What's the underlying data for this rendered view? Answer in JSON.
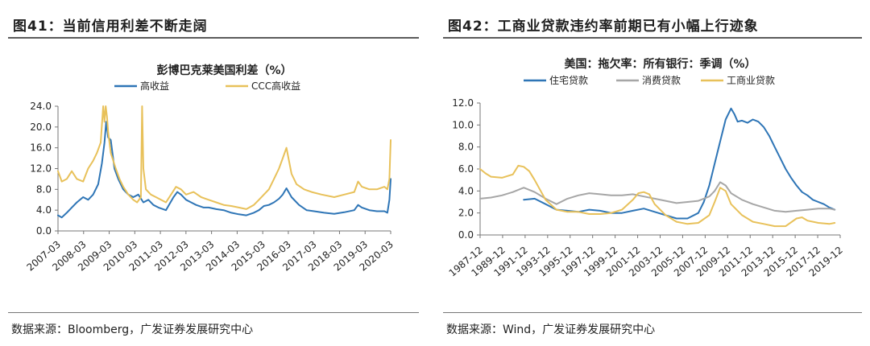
{
  "figures": [
    {
      "label": "图41：当前信用利差不断走阔",
      "source": "数据来源：Bloomberg，广发证券发展研究中心",
      "chart_data": {
        "type": "line",
        "title": "彭博巴克莱美国利差（%）",
        "ylim": [
          0,
          24
        ],
        "yticks": [
          "24.0",
          "20.0",
          "16.0",
          "12.0",
          "8.0",
          "4.0",
          "0.0"
        ],
        "xticks": [
          "2007-03",
          "2008-03",
          "2009-03",
          "2010-03",
          "2011-03",
          "2012-03",
          "2013-03",
          "2014-03",
          "2015-03",
          "2016-03",
          "2017-03",
          "2018-03",
          "2019-03",
          "2020-03"
        ],
        "x_range": [
          2007.0,
          2020.25
        ],
        "legend_position": "top",
        "grid": false,
        "series": [
          {
            "name": "高收益",
            "color": "#2e75b6",
            "x": [
              2007.0,
              2007.15,
              2007.35,
              2007.55,
              2007.75,
              2008.0,
              2008.2,
              2008.4,
              2008.6,
              2008.75,
              2008.85,
              2008.92,
              2009.0,
              2009.1,
              2009.25,
              2009.4,
              2009.6,
              2009.8,
              2010.0,
              2010.2,
              2010.4,
              2010.6,
              2010.8,
              2011.0,
              2011.3,
              2011.6,
              2011.75,
              2011.9,
              2012.1,
              2012.3,
              2012.5,
              2012.8,
              2013.0,
              2013.3,
              2013.6,
              2013.9,
              2014.2,
              2014.5,
              2014.8,
              2015.0,
              2015.2,
              2015.4,
              2015.6,
              2015.8,
              2015.95,
              2016.1,
              2016.3,
              2016.6,
              2016.9,
              2017.2,
              2017.6,
              2018.0,
              2018.4,
              2018.8,
              2018.95,
              2019.1,
              2019.4,
              2019.7,
              2020.0,
              2020.12,
              2020.2,
              2020.25
            ],
            "values": [
              3.0,
              2.6,
              3.5,
              4.5,
              5.5,
              6.5,
              6.0,
              7.0,
              9.0,
              13.0,
              17.0,
              21.0,
              18.0,
              17.5,
              12.0,
              10.0,
              8.0,
              7.0,
              6.5,
              7.0,
              5.5,
              6.0,
              5.0,
              4.5,
              4.0,
              6.5,
              7.5,
              7.0,
              6.0,
              5.5,
              5.0,
              4.5,
              4.5,
              4.2,
              4.0,
              3.5,
              3.2,
              3.0,
              3.5,
              4.0,
              4.8,
              5.0,
              5.5,
              6.2,
              7.0,
              8.2,
              6.5,
              5.0,
              4.0,
              3.8,
              3.5,
              3.3,
              3.6,
              4.0,
              5.0,
              4.5,
              4.0,
              3.8,
              3.8,
              3.5,
              6.0,
              10.0
            ]
          },
          {
            "name": "CCC高收益",
            "color": "#e8c15a",
            "x": [
              2007.0,
              2007.15,
              2007.35,
              2007.55,
              2007.75,
              2008.0,
              2008.2,
              2008.4,
              2008.55,
              2008.7,
              2008.8,
              2008.85,
              2008.9,
              2008.95,
              2009.0,
              2009.1,
              2009.3,
              2009.45,
              2009.6,
              2009.8,
              2010.0,
              2010.15,
              2010.3,
              2010.35,
              2010.4,
              2010.5,
              2010.7,
              2010.9,
              2011.1,
              2011.3,
              2011.5,
              2011.7,
              2011.9,
              2012.1,
              2012.4,
              2012.7,
              2013.0,
              2013.3,
              2013.6,
              2013.9,
              2014.2,
              2014.5,
              2014.8,
              2015.0,
              2015.2,
              2015.4,
              2015.6,
              2015.8,
              2015.95,
              2016.1,
              2016.3,
              2016.5,
              2016.8,
              2017.1,
              2017.5,
              2018.0,
              2018.4,
              2018.8,
              2018.95,
              2019.1,
              2019.4,
              2019.7,
              2020.0,
              2020.12,
              2020.2,
              2020.25
            ],
            "values": [
              11.5,
              9.5,
              10.0,
              11.5,
              10.0,
              9.5,
              12.0,
              13.5,
              15.0,
              17.0,
              24.0,
              21.0,
              24.0,
              22.0,
              19.0,
              15.0,
              12.0,
              10.0,
              8.5,
              7.0,
              6.0,
              5.5,
              6.5,
              24.0,
              12.0,
              8.0,
              7.0,
              6.5,
              6.0,
              5.5,
              7.0,
              8.5,
              8.0,
              7.0,
              7.5,
              6.5,
              6.0,
              5.5,
              5.0,
              4.8,
              4.5,
              4.2,
              5.0,
              6.0,
              7.0,
              8.0,
              10.0,
              12.0,
              14.0,
              16.0,
              11.0,
              9.0,
              8.0,
              7.5,
              7.0,
              6.5,
              7.0,
              7.5,
              9.5,
              8.5,
              8.0,
              8.0,
              8.5,
              8.0,
              10.0,
              17.5
            ]
          }
        ]
      }
    },
    {
      "label": "图42：工商业贷款违约率前期已有小幅上行迹象",
      "source": "数据来源：Wind，广发证券发展研究中心",
      "chart_data": {
        "type": "line",
        "title": "美国：拖欠率：所有银行：季调（%）",
        "ylim": [
          0,
          12
        ],
        "yticks": [
          "12.0",
          "10.0",
          "8.0",
          "6.0",
          "4.0",
          "2.0",
          "0.0"
        ],
        "xticks": [
          "1987-12",
          "1989-12",
          "1991-12",
          "1993-12",
          "1995-12",
          "1997-12",
          "1999-12",
          "2001-12",
          "2003-12",
          "2005-12",
          "2007-12",
          "2009-12",
          "2011-12",
          "2013-12",
          "2015-12",
          "2017-12",
          "2019-12"
        ],
        "x_range": [
          1987.0,
          2020.0
        ],
        "legend_position": "top",
        "grid": false,
        "series": [
          {
            "name": "住宅贷款",
            "color": "#2e75b6",
            "x": [
              1991.0,
              1992.0,
              1993.0,
              1994.0,
              1995.0,
              1996.0,
              1997.0,
              1998.0,
              1999.0,
              2000.0,
              2001.0,
              2002.0,
              2003.0,
              2004.0,
              2005.0,
              2006.0,
              2007.0,
              2007.5,
              2008.0,
              2008.5,
              2009.0,
              2009.5,
              2010.0,
              2010.3,
              2010.6,
              2011.0,
              2011.5,
              2012.0,
              2012.5,
              2013.0,
              2013.5,
              2014.0,
              2014.5,
              2015.0,
              2015.5,
              2016.0,
              2016.5,
              2017.0,
              2017.5,
              2018.0,
              2018.5,
              2019.0,
              2019.5
            ],
            "values": [
              3.2,
              3.3,
              2.8,
              2.3,
              2.2,
              2.1,
              2.3,
              2.2,
              2.0,
              2.0,
              2.2,
              2.4,
              2.1,
              1.8,
              1.5,
              1.5,
              2.0,
              3.0,
              4.5,
              6.5,
              8.5,
              10.5,
              11.5,
              11.0,
              10.3,
              10.4,
              10.2,
              10.5,
              10.3,
              9.8,
              9.0,
              8.0,
              7.0,
              6.0,
              5.2,
              4.5,
              3.9,
              3.6,
              3.2,
              3.0,
              2.8,
              2.5,
              2.3
            ]
          },
          {
            "name": "消费贷款",
            "color": "#a6a6a6",
            "x": [
              1987.0,
              1988.0,
              1989.0,
              1990.0,
              1991.0,
              1992.0,
              1993.0,
              1994.0,
              1995.0,
              1996.0,
              1997.0,
              1998.0,
              1999.0,
              2000.0,
              2001.0,
              2002.0,
              2003.0,
              2004.0,
              2005.0,
              2006.0,
              2007.0,
              2008.0,
              2008.5,
              2009.0,
              2009.5,
              2010.0,
              2011.0,
              2012.0,
              2013.0,
              2014.0,
              2015.0,
              2016.0,
              2017.0,
              2018.0,
              2019.0,
              2019.5
            ],
            "values": [
              3.3,
              3.4,
              3.6,
              3.9,
              4.3,
              3.9,
              3.3,
              2.8,
              3.3,
              3.6,
              3.8,
              3.7,
              3.6,
              3.6,
              3.7,
              3.5,
              3.3,
              3.1,
              2.9,
              3.0,
              3.1,
              3.5,
              4.0,
              4.8,
              4.5,
              3.8,
              3.2,
              2.8,
              2.5,
              2.2,
              2.1,
              2.2,
              2.3,
              2.4,
              2.4,
              2.3
            ]
          },
          {
            "name": "工商业贷款",
            "color": "#e8c15a",
            "x": [
              1987.0,
              1987.5,
              1988.0,
              1989.0,
              1990.0,
              1990.5,
              1991.0,
              1991.5,
              1992.0,
              1993.0,
              1994.0,
              1995.0,
              1996.0,
              1997.0,
              1998.0,
              1999.0,
              2000.0,
              2001.0,
              2001.5,
              2002.0,
              2002.5,
              2003.0,
              2004.0,
              2005.0,
              2006.0,
              2007.0,
              2008.0,
              2008.5,
              2009.0,
              2009.5,
              2010.0,
              2011.0,
              2012.0,
              2013.0,
              2014.0,
              2015.0,
              2016.0,
              2016.5,
              2017.0,
              2018.0,
              2019.0,
              2019.5
            ],
            "values": [
              6.0,
              5.6,
              5.3,
              5.2,
              5.5,
              6.3,
              6.2,
              5.8,
              5.0,
              3.2,
              2.3,
              2.1,
              2.1,
              1.9,
              1.9,
              2.0,
              2.3,
              3.2,
              3.8,
              3.9,
              3.7,
              2.8,
              1.8,
              1.2,
              1.0,
              1.1,
              1.8,
              3.0,
              4.3,
              4.0,
              2.8,
              1.8,
              1.2,
              1.0,
              0.8,
              0.8,
              1.5,
              1.6,
              1.3,
              1.1,
              1.0,
              1.1
            ]
          }
        ]
      }
    }
  ]
}
